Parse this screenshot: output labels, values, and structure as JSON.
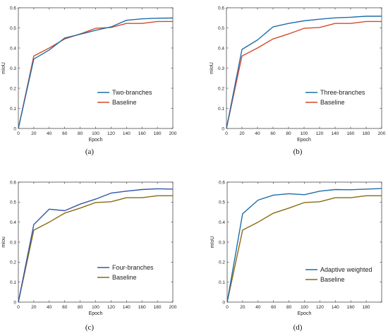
{
  "chart_data": [
    {
      "type": "line",
      "caption": "(a)",
      "xlabel": "Epoch",
      "ylabel": "mIoU",
      "xlim": [
        0,
        200
      ],
      "ylim": [
        0,
        0.6
      ],
      "xticks": [
        "0",
        "20",
        "40",
        "60",
        "80",
        "100",
        "120",
        "140",
        "160",
        "180",
        "200"
      ],
      "yticks": [
        "0",
        "0.1",
        "0.2",
        "0.3",
        "0.4",
        "0.5",
        "0.6"
      ],
      "grid": false,
      "legend_position": "center-right",
      "x": [
        0,
        20,
        40,
        60,
        80,
        100,
        120,
        140,
        160,
        180,
        200
      ],
      "series": [
        {
          "name": "Two-branches",
          "color": "#1f6ea8",
          "values": [
            0,
            0.345,
            0.39,
            0.45,
            0.468,
            0.488,
            0.505,
            0.538,
            0.545,
            0.548,
            0.549
          ]
        },
        {
          "name": "Baseline",
          "color": "#d6492a",
          "values": [
            0,
            0.36,
            0.4,
            0.445,
            0.47,
            0.498,
            0.502,
            0.522,
            0.522,
            0.532,
            0.532
          ]
        }
      ]
    },
    {
      "type": "line",
      "caption": "(b)",
      "xlabel": "Epoch",
      "ylabel": "mIoU",
      "xlim": [
        0,
        200
      ],
      "ylim": [
        0,
        0.6
      ],
      "xticks": [
        "0",
        "20",
        "40",
        "60",
        "80",
        "100",
        "120",
        "140",
        "160",
        "180",
        "200"
      ],
      "yticks": [
        "0",
        "0.1",
        "0.2",
        "0.3",
        "0.4",
        "0.5",
        "0.6"
      ],
      "grid": false,
      "legend_position": "center-right",
      "x": [
        0,
        20,
        40,
        60,
        80,
        100,
        120,
        140,
        160,
        180,
        200
      ],
      "series": [
        {
          "name": "Three-branches",
          "color": "#1f6ea8",
          "values": [
            0,
            0.393,
            0.44,
            0.505,
            0.522,
            0.535,
            0.543,
            0.55,
            0.553,
            0.558,
            0.558
          ]
        },
        {
          "name": "Baseline",
          "color": "#d6492a",
          "values": [
            0,
            0.36,
            0.4,
            0.445,
            0.47,
            0.498,
            0.502,
            0.522,
            0.522,
            0.532,
            0.532
          ]
        }
      ]
    },
    {
      "type": "line",
      "caption": "(c)",
      "xlabel": "Epoch",
      "ylabel": "mIou",
      "xlim": [
        0,
        200
      ],
      "ylim": [
        0,
        0.6
      ],
      "xticks": [
        "0",
        "20",
        "40",
        "60",
        "80",
        "100",
        "120",
        "140",
        "160",
        "180",
        "200"
      ],
      "yticks": [
        "0",
        "0.1",
        "0.2",
        "0.3",
        "0.4",
        "0.5",
        "0.6"
      ],
      "grid": false,
      "legend_position": "bottom-right",
      "x": [
        0,
        20,
        40,
        60,
        80,
        100,
        120,
        140,
        160,
        180,
        200
      ],
      "series": [
        {
          "name": "Four-branches",
          "color": "#3355aa",
          "values": [
            0,
            0.388,
            0.465,
            0.457,
            0.49,
            0.515,
            0.545,
            0.555,
            0.563,
            0.567,
            0.565
          ]
        },
        {
          "name": "Baseline",
          "color": "#8b6914",
          "values": [
            0,
            0.36,
            0.4,
            0.445,
            0.47,
            0.498,
            0.502,
            0.522,
            0.522,
            0.532,
            0.532
          ]
        }
      ]
    },
    {
      "type": "line",
      "caption": "(d)",
      "xlabel": "Epoch",
      "ylabel": "mIoU",
      "xlim": [
        0,
        200
      ],
      "ylim": [
        0,
        0.6
      ],
      "xticks": [
        "0",
        "20",
        "40",
        "60",
        "80",
        "100",
        "120",
        "140",
        "160",
        "180",
        ""
      ],
      "yticks": [
        "0",
        "0.1",
        "0.2",
        "0.3",
        "0.4",
        "0.5",
        "0.6"
      ],
      "grid": false,
      "legend_position": "bottom-right",
      "x": [
        0,
        20,
        40,
        60,
        80,
        100,
        120,
        140,
        160,
        180,
        200
      ],
      "series": [
        {
          "name": "Adaptive weighted",
          "color": "#1f6ea8",
          "values": [
            0,
            0.442,
            0.51,
            0.535,
            0.542,
            0.537,
            0.555,
            0.563,
            0.562,
            0.565,
            0.568
          ]
        },
        {
          "name": "Baseline",
          "color": "#8b6914",
          "values": [
            0,
            0.36,
            0.4,
            0.445,
            0.47,
            0.498,
            0.502,
            0.522,
            0.522,
            0.532,
            0.532
          ]
        }
      ]
    }
  ]
}
